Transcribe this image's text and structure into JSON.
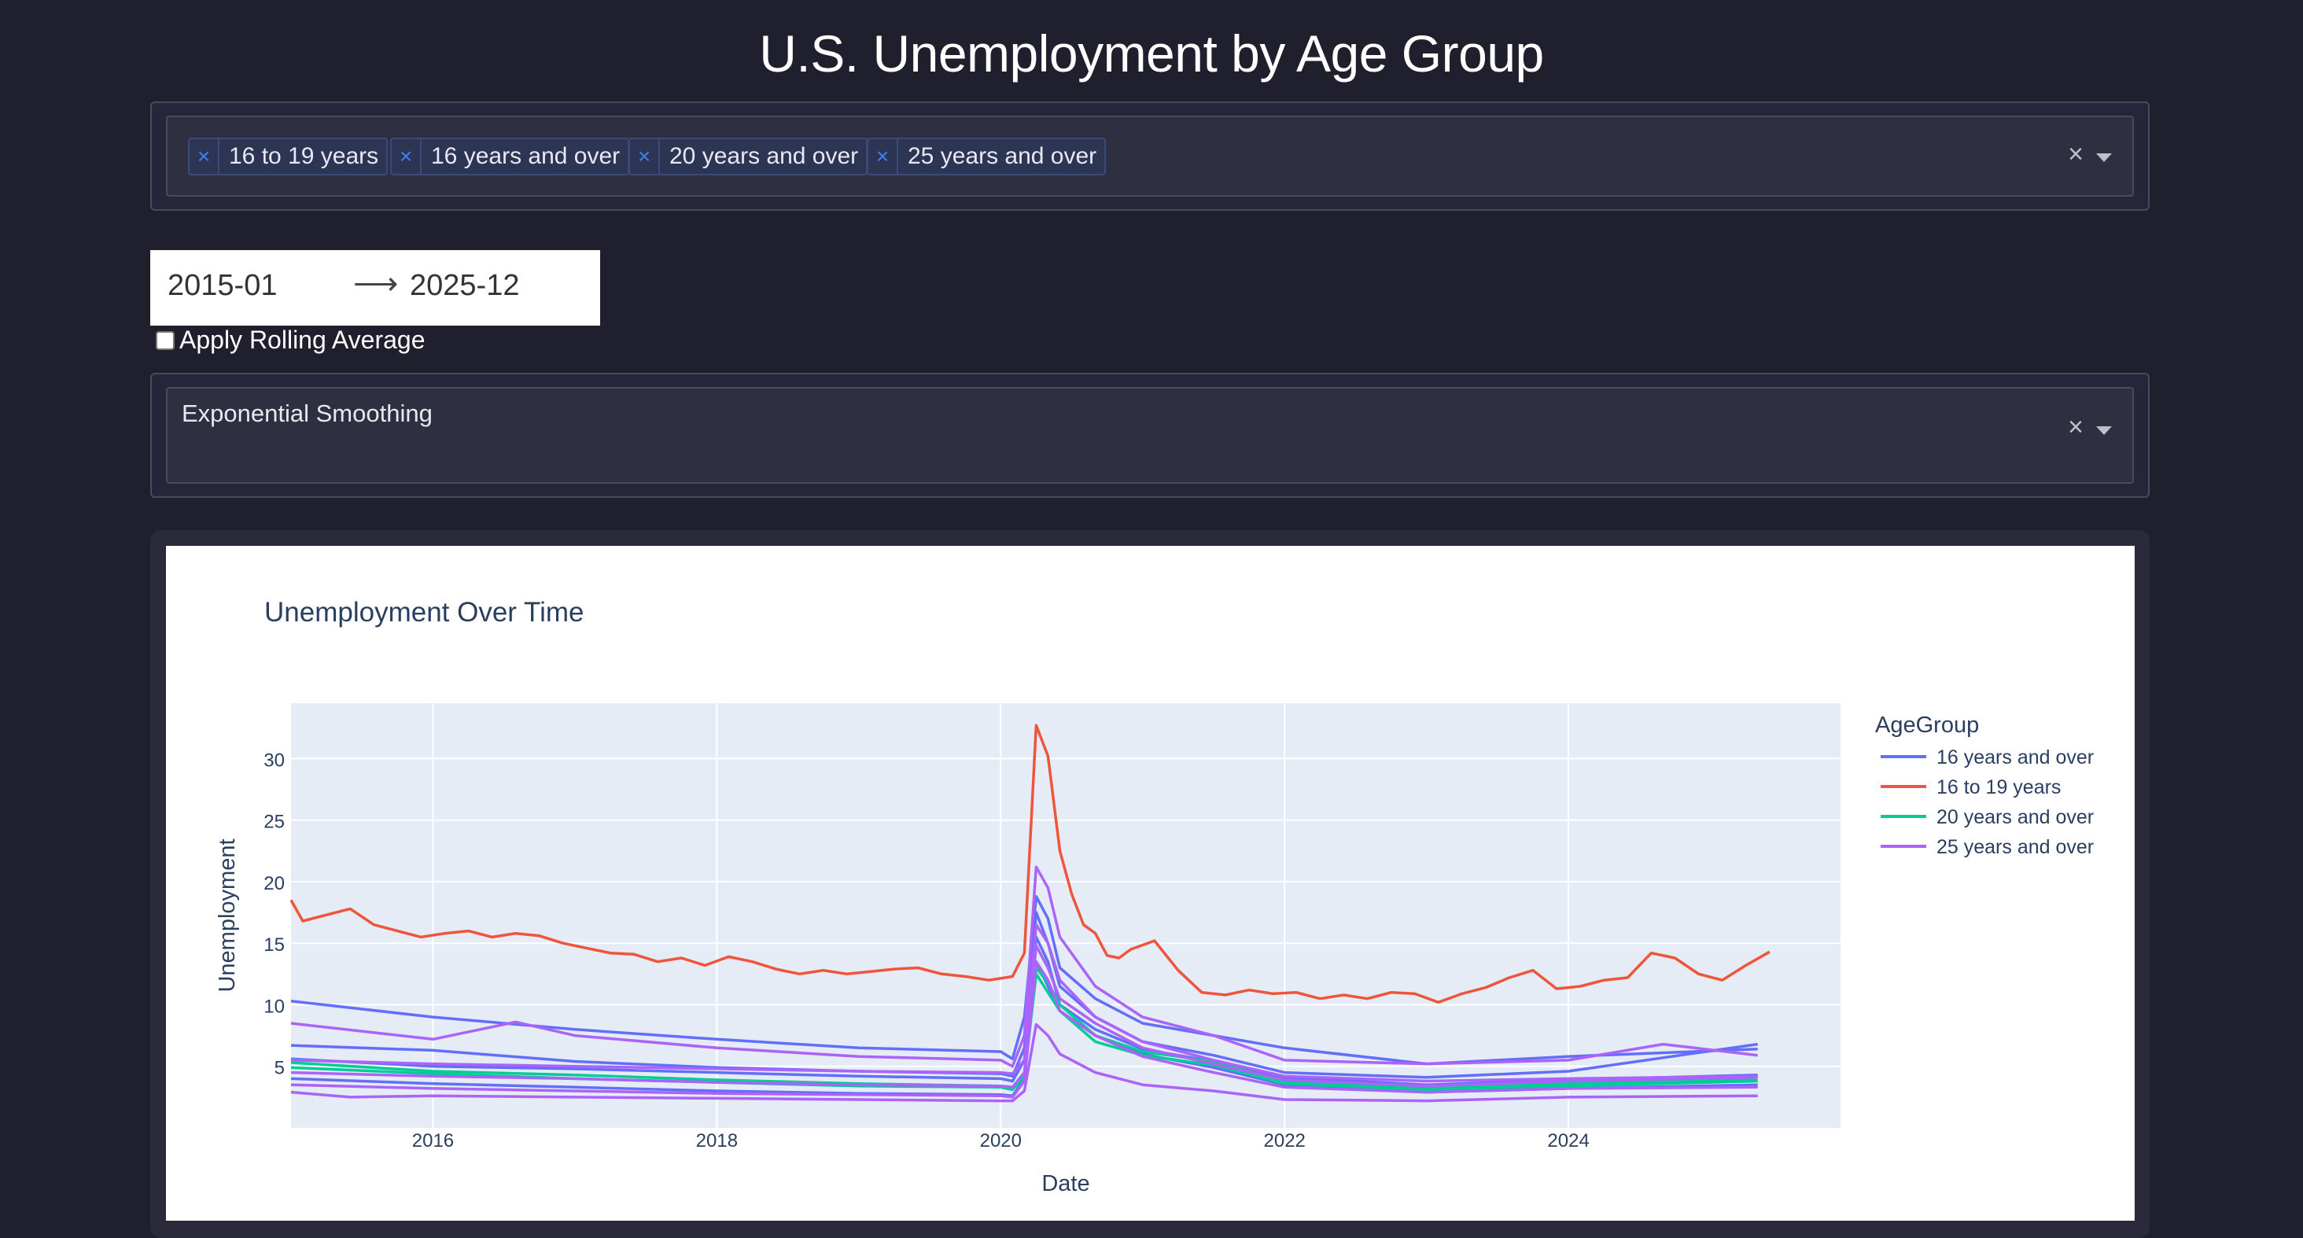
{
  "header": {
    "title": "U.S. Unemployment by Age Group"
  },
  "age_select": {
    "chips": [
      "16 to 19 years",
      "16 years and over",
      "20 years and over",
      "25 years and over"
    ],
    "chip_remove_glyph": "×",
    "clear_glyph": "×"
  },
  "date_range": {
    "start": "2015-01",
    "end": "2025-12",
    "arrow": "⟶"
  },
  "rolling": {
    "label": "Apply Rolling Average",
    "checked": false
  },
  "method_select": {
    "value": "Exponential Smoothing",
    "clear_glyph": "×"
  },
  "colors": {
    "s16over": "#636efa",
    "s16to19": "#ef553b",
    "s20over": "#00cc96",
    "s25over": "#ab63fa"
  },
  "chart_data": {
    "type": "line",
    "title": "Unemployment Over Time",
    "xlabel": "Date",
    "ylabel": "Unemployment",
    "x_range": [
      "2015-01",
      "2025-12"
    ],
    "ylim": [
      0,
      34.5
    ],
    "x_ticks": [
      "2016",
      "2018",
      "2020",
      "2022",
      "2024"
    ],
    "y_ticks": [
      5,
      10,
      15,
      20,
      25,
      30
    ],
    "grid": true,
    "legend": {
      "title": "AgeGroup",
      "placement": "right"
    },
    "series": [
      {
        "name": "16 years and over",
        "color": "#636efa",
        "x": [
          "2015-01",
          "2016-01",
          "2017-01",
          "2018-01",
          "2019-01",
          "2020-01",
          "2020-02",
          "2020-03",
          "2020-04",
          "2020-05",
          "2020-06",
          "2020-09",
          "2021-01",
          "2021-07",
          "2022-01",
          "2023-01",
          "2024-01",
          "2025-05"
        ],
        "y": [
          10.3,
          9.0,
          8.0,
          7.2,
          6.5,
          6.2,
          5.6,
          9.0,
          18.8,
          17.0,
          13.0,
          10.5,
          8.5,
          7.5,
          6.5,
          5.2,
          5.8,
          6.4
        ]
      },
      {
        "name": "16 years and over",
        "color": "#636efa",
        "x": [
          "2015-01",
          "2016-01",
          "2017-01",
          "2018-01",
          "2019-01",
          "2020-01",
          "2020-02",
          "2020-03",
          "2020-04",
          "2020-05",
          "2020-06",
          "2020-09",
          "2021-01",
          "2021-07",
          "2022-01",
          "2023-01",
          "2024-01",
          "2025-05"
        ],
        "y": [
          6.7,
          6.3,
          5.4,
          4.9,
          4.6,
          4.4,
          4.2,
          6.5,
          17.5,
          15.0,
          11.5,
          9.0,
          7.0,
          5.9,
          4.5,
          4.1,
          4.6,
          6.8
        ]
      },
      {
        "name": "16 years and over",
        "color": "#636efa",
        "x": [
          "2015-01",
          "2016-01",
          "2017-01",
          "2018-01",
          "2019-01",
          "2020-01",
          "2020-02",
          "2020-03",
          "2020-04",
          "2020-05",
          "2020-06",
          "2020-09",
          "2021-01",
          "2021-07",
          "2022-01",
          "2023-01",
          "2024-01",
          "2025-05"
        ],
        "y": [
          5.6,
          5.0,
          4.8,
          4.5,
          4.2,
          4.0,
          3.8,
          5.5,
          15.5,
          13.5,
          10.0,
          8.0,
          6.4,
          5.4,
          4.1,
          3.5,
          3.9,
          4.3
        ]
      },
      {
        "name": "16 years and over",
        "color": "#636efa",
        "x": [
          "2015-01",
          "2016-01",
          "2017-01",
          "2018-01",
          "2019-01",
          "2020-01",
          "2020-02",
          "2020-03",
          "2020-04",
          "2020-05",
          "2020-06",
          "2020-09",
          "2021-01",
          "2021-07",
          "2022-01",
          "2023-01",
          "2024-01",
          "2025-05"
        ],
        "y": [
          4.0,
          3.6,
          3.3,
          3.0,
          2.8,
          2.7,
          2.6,
          4.0,
          13.5,
          11.5,
          9.5,
          7.5,
          6.0,
          4.9,
          3.5,
          2.9,
          3.2,
          3.5
        ]
      },
      {
        "name": "16 to 19 years",
        "color": "#ef553b",
        "x": [
          "2015-01",
          "2015-02",
          "2015-04",
          "2015-06",
          "2015-08",
          "2015-10",
          "2015-12",
          "2016-02",
          "2016-04",
          "2016-06",
          "2016-08",
          "2016-10",
          "2016-12",
          "2017-02",
          "2017-04",
          "2017-06",
          "2017-08",
          "2017-10",
          "2017-12",
          "2018-02",
          "2018-04",
          "2018-06",
          "2018-08",
          "2018-10",
          "2018-12",
          "2019-02",
          "2019-04",
          "2019-06",
          "2019-08",
          "2019-10",
          "2019-12",
          "2020-02",
          "2020-03",
          "2020-04",
          "2020-05",
          "2020-06",
          "2020-07",
          "2020-08",
          "2020-09",
          "2020-10",
          "2020-11",
          "2020-12",
          "2021-02",
          "2021-04",
          "2021-06",
          "2021-08",
          "2021-10",
          "2021-12",
          "2022-02",
          "2022-04",
          "2022-06",
          "2022-08",
          "2022-10",
          "2022-12",
          "2023-02",
          "2023-04",
          "2023-06",
          "2023-08",
          "2023-10",
          "2023-12",
          "2024-02",
          "2024-04",
          "2024-06",
          "2024-08",
          "2024-10",
          "2024-12",
          "2025-02",
          "2025-04",
          "2025-06"
        ],
        "y": [
          18.5,
          16.8,
          17.3,
          17.8,
          16.5,
          16.0,
          15.5,
          15.8,
          16.0,
          15.5,
          15.8,
          15.6,
          15.0,
          14.6,
          14.2,
          14.1,
          13.5,
          13.8,
          13.2,
          13.9,
          13.5,
          12.9,
          12.5,
          12.8,
          12.5,
          12.7,
          12.9,
          13.0,
          12.5,
          12.3,
          12.0,
          12.3,
          14.2,
          32.7,
          30.2,
          22.5,
          19.0,
          16.5,
          15.8,
          14.0,
          13.8,
          14.5,
          15.2,
          12.8,
          11.0,
          10.8,
          11.2,
          10.9,
          11.0,
          10.5,
          10.8,
          10.5,
          11.0,
          10.9,
          10.2,
          10.9,
          11.4,
          12.2,
          12.8,
          11.3,
          11.5,
          12.0,
          12.2,
          14.2,
          13.8,
          12.5,
          12.0,
          13.2,
          14.3
        ]
      },
      {
        "name": "20 years and over",
        "color": "#00cc96",
        "x": [
          "2015-01",
          "2016-01",
          "2017-01",
          "2018-01",
          "2019-01",
          "2020-01",
          "2020-02",
          "2020-03",
          "2020-04",
          "2020-05",
          "2020-06",
          "2020-09",
          "2021-01",
          "2021-07",
          "2022-01",
          "2023-01",
          "2024-01",
          "2025-05"
        ],
        "y": [
          5.3,
          4.6,
          4.3,
          3.9,
          3.6,
          3.4,
          3.3,
          4.5,
          13.0,
          11.8,
          10.0,
          7.5,
          6.2,
          5.4,
          3.8,
          3.3,
          3.6,
          3.9
        ]
      },
      {
        "name": "20 years and over",
        "color": "#00cc96",
        "x": [
          "2015-01",
          "2016-01",
          "2017-01",
          "2018-01",
          "2019-01",
          "2020-01",
          "2020-02",
          "2020-03",
          "2020-04",
          "2020-05",
          "2020-06",
          "2020-09",
          "2021-01",
          "2021-07",
          "2022-01",
          "2023-01",
          "2024-01",
          "2025-05"
        ],
        "y": [
          4.9,
          4.4,
          4.0,
          3.7,
          3.4,
          3.3,
          3.1,
          4.2,
          12.5,
          11.0,
          9.5,
          7.0,
          5.9,
          5.1,
          3.6,
          3.1,
          3.4,
          3.8
        ]
      },
      {
        "name": "25 years and over",
        "color": "#ab63fa",
        "x": [
          "2015-01",
          "2016-01",
          "2016-08",
          "2017-01",
          "2018-01",
          "2019-01",
          "2020-01",
          "2020-02",
          "2020-03",
          "2020-04",
          "2020-05",
          "2020-06",
          "2020-09",
          "2021-01",
          "2021-07",
          "2022-01",
          "2023-01",
          "2024-01",
          "2024-09",
          "2025-05"
        ],
        "y": [
          8.5,
          7.2,
          8.6,
          7.5,
          6.5,
          5.8,
          5.5,
          5.0,
          7.5,
          21.2,
          19.5,
          15.5,
          11.5,
          9.0,
          7.5,
          5.5,
          5.2,
          5.5,
          6.8,
          5.9
        ]
      },
      {
        "name": "25 years and over",
        "color": "#ab63fa",
        "x": [
          "2015-01",
          "2016-01",
          "2017-01",
          "2018-01",
          "2019-01",
          "2020-01",
          "2020-02",
          "2020-03",
          "2020-04",
          "2020-05",
          "2020-06",
          "2020-09",
          "2021-01",
          "2021-07",
          "2022-01",
          "2023-01",
          "2024-01",
          "2025-05"
        ],
        "y": [
          5.5,
          5.2,
          5.0,
          4.8,
          4.6,
          4.5,
          4.4,
          5.5,
          16.5,
          15.0,
          12.0,
          9.0,
          7.0,
          5.5,
          4.2,
          3.8,
          4.0,
          4.2
        ]
      },
      {
        "name": "25 years and over",
        "color": "#ab63fa",
        "x": [
          "2015-01",
          "2016-01",
          "2017-01",
          "2018-01",
          "2019-01",
          "2020-01",
          "2020-02",
          "2020-03",
          "2020-04",
          "2020-05",
          "2020-06",
          "2020-09",
          "2021-01",
          "2021-07",
          "2022-01",
          "2023-01",
          "2024-01",
          "2025-05"
        ],
        "y": [
          4.5,
          4.2,
          4.0,
          3.7,
          3.5,
          3.4,
          3.3,
          4.5,
          14.8,
          13.0,
          10.5,
          8.5,
          6.5,
          5.2,
          3.9,
          3.4,
          3.8,
          4.1
        ]
      },
      {
        "name": "25 years and over",
        "color": "#ab63fa",
        "x": [
          "2015-01",
          "2016-01",
          "2017-01",
          "2018-01",
          "2019-01",
          "2020-01",
          "2020-02",
          "2020-03",
          "2020-04",
          "2020-05",
          "2020-06",
          "2020-09",
          "2021-01",
          "2021-07",
          "2022-01",
          "2023-01",
          "2024-01",
          "2025-05"
        ],
        "y": [
          3.5,
          3.2,
          3.0,
          2.8,
          2.7,
          2.6,
          2.5,
          3.8,
          13.5,
          12.0,
          9.5,
          7.5,
          5.8,
          4.5,
          3.3,
          2.9,
          3.2,
          3.3
        ]
      },
      {
        "name": "25 years and over",
        "color": "#ab63fa",
        "x": [
          "2015-01",
          "2015-06",
          "2016-01",
          "2017-01",
          "2018-01",
          "2019-01",
          "2020-01",
          "2020-02",
          "2020-03",
          "2020-04",
          "2020-05",
          "2020-06",
          "2020-09",
          "2021-01",
          "2021-07",
          "2022-01",
          "2023-01",
          "2024-01",
          "2025-05"
        ],
        "y": [
          2.9,
          2.5,
          2.6,
          2.5,
          2.4,
          2.3,
          2.2,
          2.2,
          3.0,
          8.4,
          7.5,
          6.0,
          4.5,
          3.5,
          3.0,
          2.3,
          2.2,
          2.5,
          2.6
        ]
      }
    ]
  }
}
